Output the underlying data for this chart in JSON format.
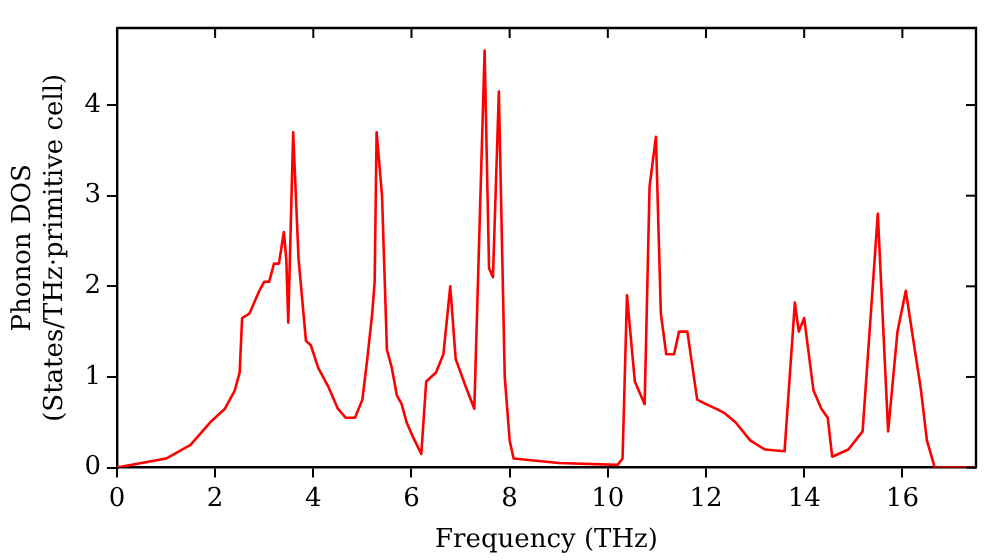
{
  "chart_data": {
    "type": "line",
    "xlabel": "Frequency (THz)",
    "ylabel": "Phonon DOS\n(States/THz·primitive cell)",
    "xlim": [
      0,
      17.5
    ],
    "xticks": [
      0,
      2,
      4,
      6,
      8,
      10,
      12,
      14,
      16
    ],
    "ylim": [
      0,
      4.85
    ],
    "yticks": [
      0,
      1,
      2,
      3,
      4
    ],
    "grid": false,
    "legend": false,
    "marker": "none",
    "line_style": "solid",
    "series": [
      {
        "color": "#ff0000",
        "x": [
          0,
          1,
          1.5,
          1.9,
          2.2,
          2.4,
          2.5,
          2.55,
          2.7,
          2.9,
          3.0,
          3.1,
          3.2,
          3.3,
          3.4,
          3.45,
          3.49,
          3.59,
          3.7,
          3.85,
          3.95,
          4.1,
          4.3,
          4.5,
          4.66,
          4.85,
          5.0,
          5.1,
          5.2,
          5.25,
          5.29,
          5.4,
          5.5,
          5.6,
          5.7,
          5.8,
          5.9,
          6.02,
          6.2,
          6.3,
          6.5,
          6.65,
          6.79,
          6.9,
          7.1,
          7.28,
          7.49,
          7.58,
          7.66,
          7.78,
          7.9,
          8.0,
          8.08,
          9,
          10.2,
          10.3,
          10.39,
          10.55,
          10.75,
          10.85,
          10.98,
          11.08,
          11.19,
          11.35,
          11.45,
          11.62,
          11.82,
          12.0,
          12.2,
          12.38,
          12.6,
          12.9,
          13.2,
          13.6,
          13.81,
          13.89,
          14.0,
          14.19,
          14.35,
          14.48,
          14.57,
          14.9,
          15.19,
          15.5,
          15.71,
          15.9,
          16.07,
          16.38,
          16.5,
          16.66,
          17.5
        ],
        "values": [
          0,
          0.1,
          0.25,
          0.5,
          0.65,
          0.85,
          1.05,
          1.65,
          1.7,
          1.95,
          2.05,
          2.05,
          2.25,
          2.25,
          2.6,
          2.3,
          1.6,
          3.7,
          2.3,
          1.4,
          1.35,
          1.1,
          0.9,
          0.65,
          0.55,
          0.55,
          0.75,
          1.2,
          1.7,
          2.05,
          3.7,
          3.0,
          1.3,
          1.1,
          0.8,
          0.7,
          0.5,
          0.35,
          0.15,
          0.95,
          1.05,
          1.25,
          2.0,
          1.2,
          0.9,
          0.65,
          4.6,
          2.2,
          2.1,
          4.15,
          1.0,
          0.3,
          0.1,
          0.05,
          0.03,
          0.1,
          1.9,
          0.95,
          0.7,
          3.1,
          3.65,
          1.7,
          1.25,
          1.25,
          1.5,
          1.5,
          0.75,
          0.7,
          0.65,
          0.6,
          0.5,
          0.3,
          0.2,
          0.18,
          1.82,
          1.5,
          1.65,
          0.85,
          0.65,
          0.55,
          0.12,
          0.2,
          0.4,
          2.8,
          0.4,
          1.5,
          1.95,
          0.85,
          0.3,
          0,
          0
        ]
      }
    ]
  }
}
